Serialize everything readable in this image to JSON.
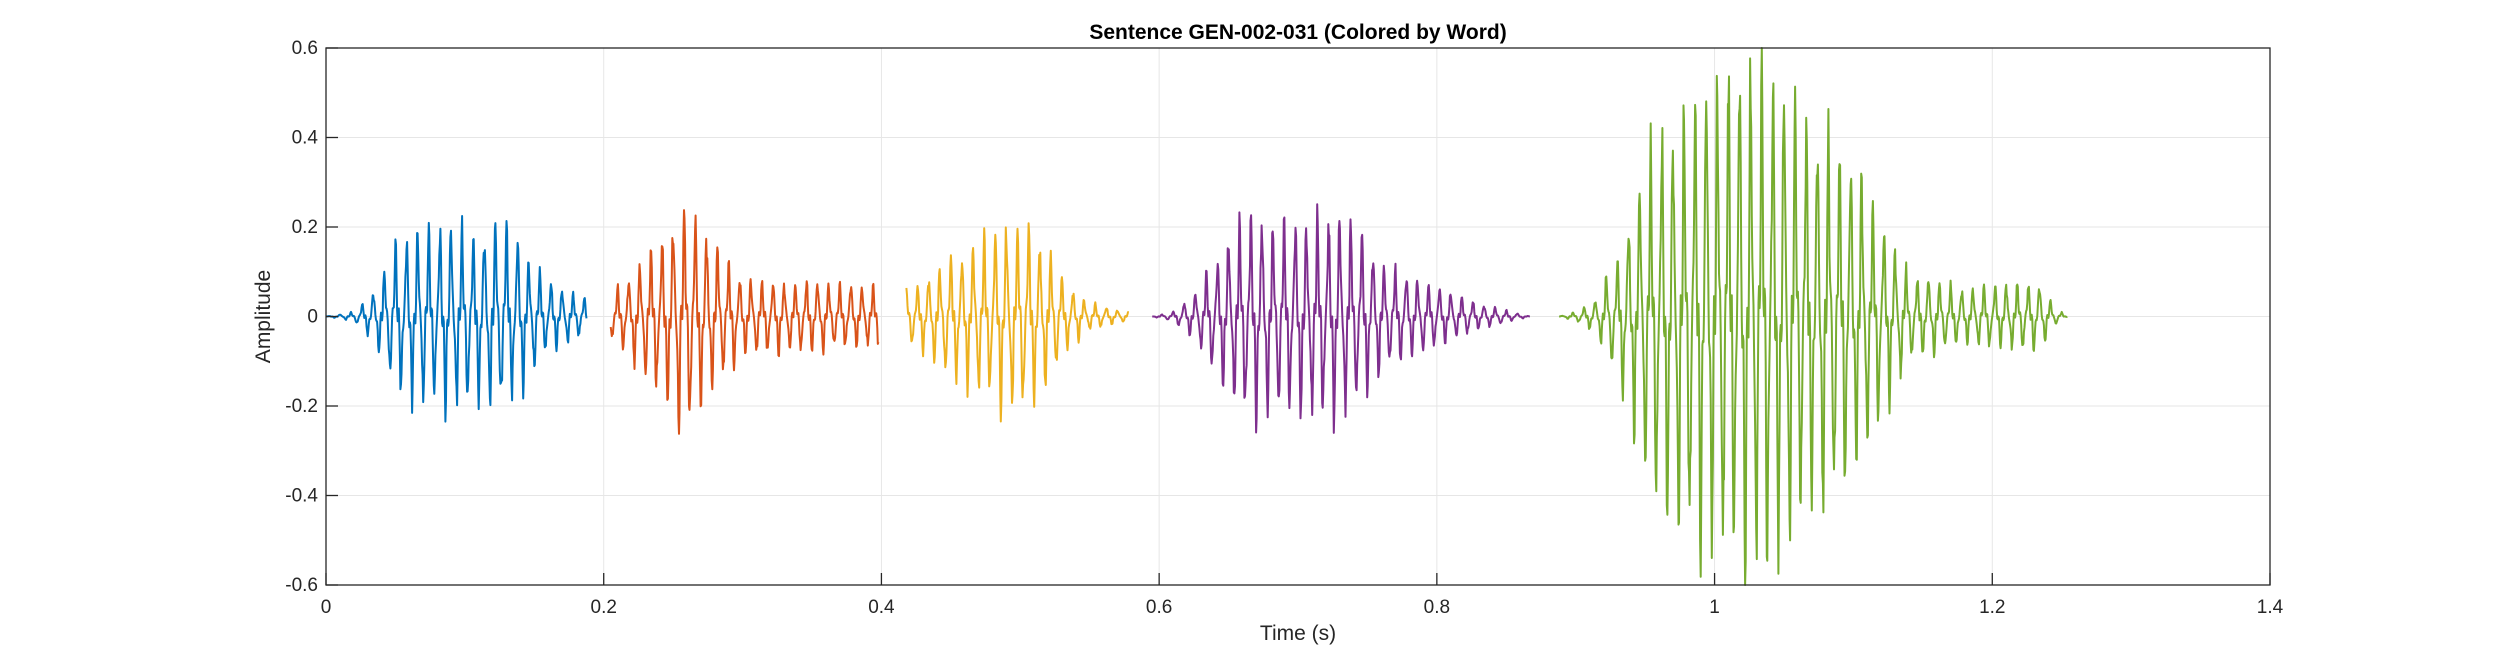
{
  "chart_data": {
    "type": "line",
    "title": "Sentence GEN-002-031 (Colored by Word)",
    "xlabel": "Time (s)",
    "ylabel": "Amplitude",
    "xlim": [
      0,
      1.4
    ],
    "ylim": [
      -0.6,
      0.6
    ],
    "x_ticks": [
      0,
      0.2,
      0.4,
      0.6,
      0.8,
      1,
      1.2,
      1.4
    ],
    "x_tick_labels": [
      "0",
      "0.2",
      "0.4",
      "0.6",
      "0.8",
      "1",
      "1.2",
      "1.4"
    ],
    "y_ticks": [
      -0.6,
      -0.4,
      -0.2,
      0,
      0.2,
      0.4,
      0.6
    ],
    "y_tick_labels": [
      "-0.6",
      "-0.4",
      "-0.2",
      "0",
      "0.2",
      "0.4",
      "0.6"
    ],
    "grid": true,
    "legend": "none",
    "series": [
      {
        "color": "#0072BD",
        "start": 0.0,
        "end": 0.188,
        "envelope": [
          [
            0.0,
            0.0
          ],
          [
            0.02,
            0.01
          ],
          [
            0.035,
            0.06
          ],
          [
            0.05,
            0.17
          ],
          [
            0.07,
            0.2
          ],
          [
            0.09,
            0.2
          ],
          [
            0.11,
            0.19
          ],
          [
            0.125,
            0.22
          ],
          [
            0.14,
            0.17
          ],
          [
            0.16,
            0.08
          ],
          [
            0.188,
            0.04
          ]
        ]
      },
      {
        "color": "#D95319",
        "start": 0.205,
        "end": 0.398,
        "envelope": [
          [
            0.205,
            0.05
          ],
          [
            0.22,
            0.1
          ],
          [
            0.24,
            0.17
          ],
          [
            0.255,
            0.25
          ],
          [
            0.265,
            0.24
          ],
          [
            0.28,
            0.16
          ],
          [
            0.3,
            0.09
          ],
          [
            0.33,
            0.08
          ],
          [
            0.36,
            0.08
          ],
          [
            0.38,
            0.07
          ],
          [
            0.398,
            0.07
          ]
        ]
      },
      {
        "color": "#EDB120",
        "start": 0.418,
        "end": 0.578,
        "envelope": [
          [
            0.418,
            0.06
          ],
          [
            0.43,
            0.08
          ],
          [
            0.45,
            0.14
          ],
          [
            0.47,
            0.17
          ],
          [
            0.49,
            0.21
          ],
          [
            0.505,
            0.22
          ],
          [
            0.52,
            0.15
          ],
          [
            0.535,
            0.07
          ],
          [
            0.55,
            0.03
          ],
          [
            0.578,
            0.01
          ]
        ]
      },
      {
        "color": "#7E2F8E",
        "start": 0.595,
        "end": 0.867,
        "envelope": [
          [
            0.595,
            0.0
          ],
          [
            0.61,
            0.01
          ],
          [
            0.625,
            0.05
          ],
          [
            0.645,
            0.16
          ],
          [
            0.665,
            0.24
          ],
          [
            0.69,
            0.21
          ],
          [
            0.72,
            0.24
          ],
          [
            0.74,
            0.21
          ],
          [
            0.76,
            0.13
          ],
          [
            0.78,
            0.09
          ],
          [
            0.8,
            0.07
          ],
          [
            0.83,
            0.03
          ],
          [
            0.867,
            0.0
          ]
        ]
      },
      {
        "color": "#77AC30",
        "start": 0.888,
        "end": 1.254,
        "envelope": [
          [
            0.888,
            0.0
          ],
          [
            0.9,
            0.01
          ],
          [
            0.915,
            0.04
          ],
          [
            0.93,
            0.14
          ],
          [
            0.945,
            0.3
          ],
          [
            0.96,
            0.42
          ],
          [
            0.98,
            0.5
          ],
          [
            1.0,
            0.54
          ],
          [
            1.02,
            0.57
          ],
          [
            1.04,
            0.56
          ],
          [
            1.06,
            0.48
          ],
          [
            1.08,
            0.43
          ],
          [
            1.1,
            0.35
          ],
          [
            1.12,
            0.22
          ],
          [
            1.14,
            0.1
          ],
          [
            1.16,
            0.08
          ],
          [
            1.18,
            0.06
          ],
          [
            1.2,
            0.07
          ],
          [
            1.22,
            0.08
          ],
          [
            1.235,
            0.07
          ],
          [
            1.245,
            0.02
          ],
          [
            1.254,
            0.0
          ]
        ]
      }
    ]
  }
}
